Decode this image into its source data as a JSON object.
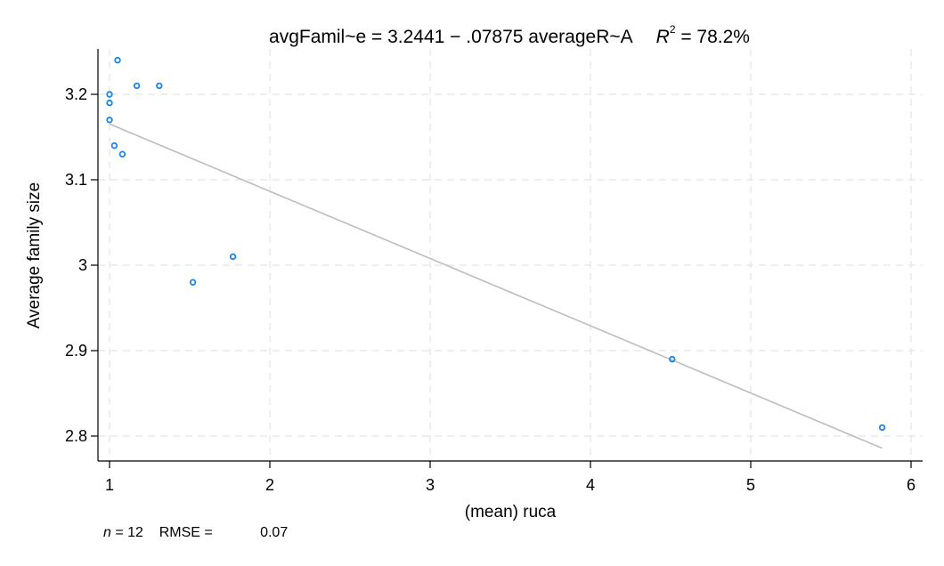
{
  "chart_data": {
    "type": "scatter",
    "title_parts": {
      "lhs": "avgFamil~e = 3.2441 − .07875 averageR~A",
      "r2_symbol": "R",
      "r2_sup": "2",
      "r2_value": " = 78.2%"
    },
    "xlabel": "(mean) ruca",
    "ylabel": "Average family size",
    "xlim": [
      1,
      6
    ],
    "ylim": [
      2.8,
      3.2
    ],
    "x_ticks": [
      1,
      2,
      3,
      4,
      5,
      6
    ],
    "x_tick_labels": [
      "1",
      "2",
      "3",
      "4",
      "5",
      "6"
    ],
    "y_ticks": [
      2.8,
      2.9,
      3.0,
      3.1,
      3.2
    ],
    "y_tick_labels": [
      "2.8",
      "2.9",
      "3",
      "3.1",
      "3.2"
    ],
    "grid": true,
    "points": [
      {
        "x": 1.05,
        "y": 3.24
      },
      {
        "x": 1.17,
        "y": 3.21
      },
      {
        "x": 1.31,
        "y": 3.21
      },
      {
        "x": 1.0,
        "y": 3.2
      },
      {
        "x": 1.0,
        "y": 3.19
      },
      {
        "x": 1.0,
        "y": 3.17
      },
      {
        "x": 1.03,
        "y": 3.14
      },
      {
        "x": 1.08,
        "y": 3.13
      },
      {
        "x": 1.77,
        "y": 3.01
      },
      {
        "x": 1.52,
        "y": 2.98
      },
      {
        "x": 4.51,
        "y": 2.89
      },
      {
        "x": 5.82,
        "y": 2.81
      }
    ],
    "fit_line": {
      "x_start": 1.0,
      "y_start": 3.1653,
      "x_end": 5.82,
      "y_end": 2.7858
    },
    "colors": {
      "points": "#1a85e6",
      "fit_line": "#bdbdbd",
      "grid": "#e4e4e4",
      "axis": "#000000"
    }
  },
  "footer": {
    "n_label": "n",
    "n_value": " = 12",
    "rmse_label": "RMSE =",
    "rmse_value": "0.07"
  }
}
